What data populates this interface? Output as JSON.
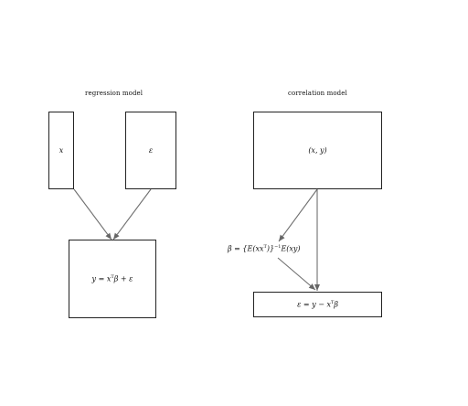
{
  "regression": {
    "title": "regression model",
    "box_x": "x",
    "box_eps": "ε",
    "result_lhs": "y = x",
    "result_sup": "T",
    "result_rhs": "β + ε"
  },
  "correlation": {
    "title": "correlation model",
    "box_xy": "(x, y)",
    "estimator_a": "β = {E(xx",
    "estimator_sup1": "T",
    "estimator_b": ")}",
    "estimator_sup2": "−1",
    "estimator_c": "E(xy)",
    "result_lhs": "ε = y − x",
    "result_sup": "T",
    "result_rhs": "β"
  }
}
